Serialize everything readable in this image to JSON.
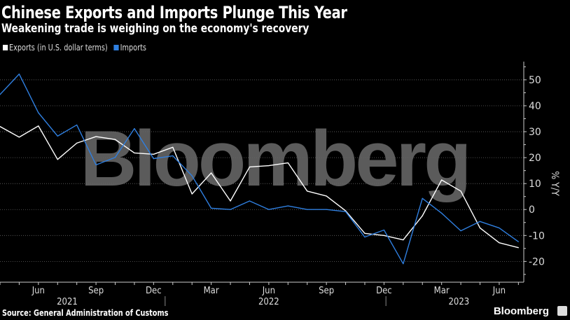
{
  "header": {
    "title": "Chinese Exports and Imports Plunge This Year",
    "subtitle": "Weakening trade is weighing on the economy's recovery"
  },
  "footer": {
    "source": "Source: General Administration of Customs",
    "logo": "Bloomberg"
  },
  "watermark": "Bloomberg",
  "chart_data": {
    "type": "line",
    "title": "Chinese Exports and Imports Plunge This Year",
    "ylabel": "% Y/Y",
    "ylim": [
      -28,
      57
    ],
    "yticks": [
      -20,
      -10,
      0,
      10,
      20,
      30,
      40,
      50
    ],
    "grid": true,
    "legend_placement": "top-left",
    "y_axis_side": "right",
    "x": [
      "2021-04",
      "2021-05",
      "2021-06",
      "2021-07",
      "2021-08",
      "2021-09",
      "2021-10",
      "2021-11",
      "2021-12",
      "2022-01",
      "2022-02",
      "2022-03",
      "2022-04",
      "2022-05",
      "2022-06",
      "2022-07",
      "2022-08",
      "2022-09",
      "2022-10",
      "2022-11",
      "2022-12",
      "2023-01",
      "2023-02",
      "2023-03",
      "2023-04",
      "2023-05",
      "2023-06",
      "2023-07"
    ],
    "month_labels": [
      {
        "index": 2,
        "label": "Jun"
      },
      {
        "index": 5,
        "label": "Sep"
      },
      {
        "index": 8,
        "label": "Dec"
      },
      {
        "index": 11,
        "label": "Mar"
      },
      {
        "index": 14,
        "label": "Jun"
      },
      {
        "index": 17,
        "label": "Sep"
      },
      {
        "index": 20,
        "label": "Dec"
      },
      {
        "index": 23,
        "label": "Mar"
      },
      {
        "index": 26,
        "label": "Jun"
      }
    ],
    "year_labels": [
      {
        "index": 3.5,
        "label": "2021"
      },
      {
        "index": 14,
        "label": "2022"
      },
      {
        "index": 23.9,
        "label": "2023"
      }
    ],
    "year_separators": [
      8.6,
      20.1
    ],
    "series": [
      {
        "name": "Exports (in U.S. dollar terms)",
        "color": "#ffffff",
        "values": [
          32,
          27.9,
          32.2,
          19.3,
          25.6,
          28.1,
          27,
          21.8,
          21.3,
          24,
          6,
          14.1,
          3.3,
          16.4,
          16.9,
          18,
          7.1,
          5.2,
          -0.5,
          -9.2,
          -10,
          -11.7,
          -2.4,
          11.4,
          7.1,
          -7.1,
          -12.8,
          -14.7
        ]
      },
      {
        "name": "Imports",
        "color": "#2f7fe0",
        "values": [
          44.3,
          52.2,
          37.3,
          28.3,
          32.6,
          17.2,
          20.1,
          31.2,
          19.6,
          20.7,
          13,
          0.5,
          0,
          3.3,
          0,
          1.4,
          0,
          0,
          -0.8,
          -10.6,
          -7.9,
          -20.9,
          4.3,
          -1.4,
          -8.2,
          -4.6,
          -7.1,
          -12.4
        ]
      }
    ]
  }
}
